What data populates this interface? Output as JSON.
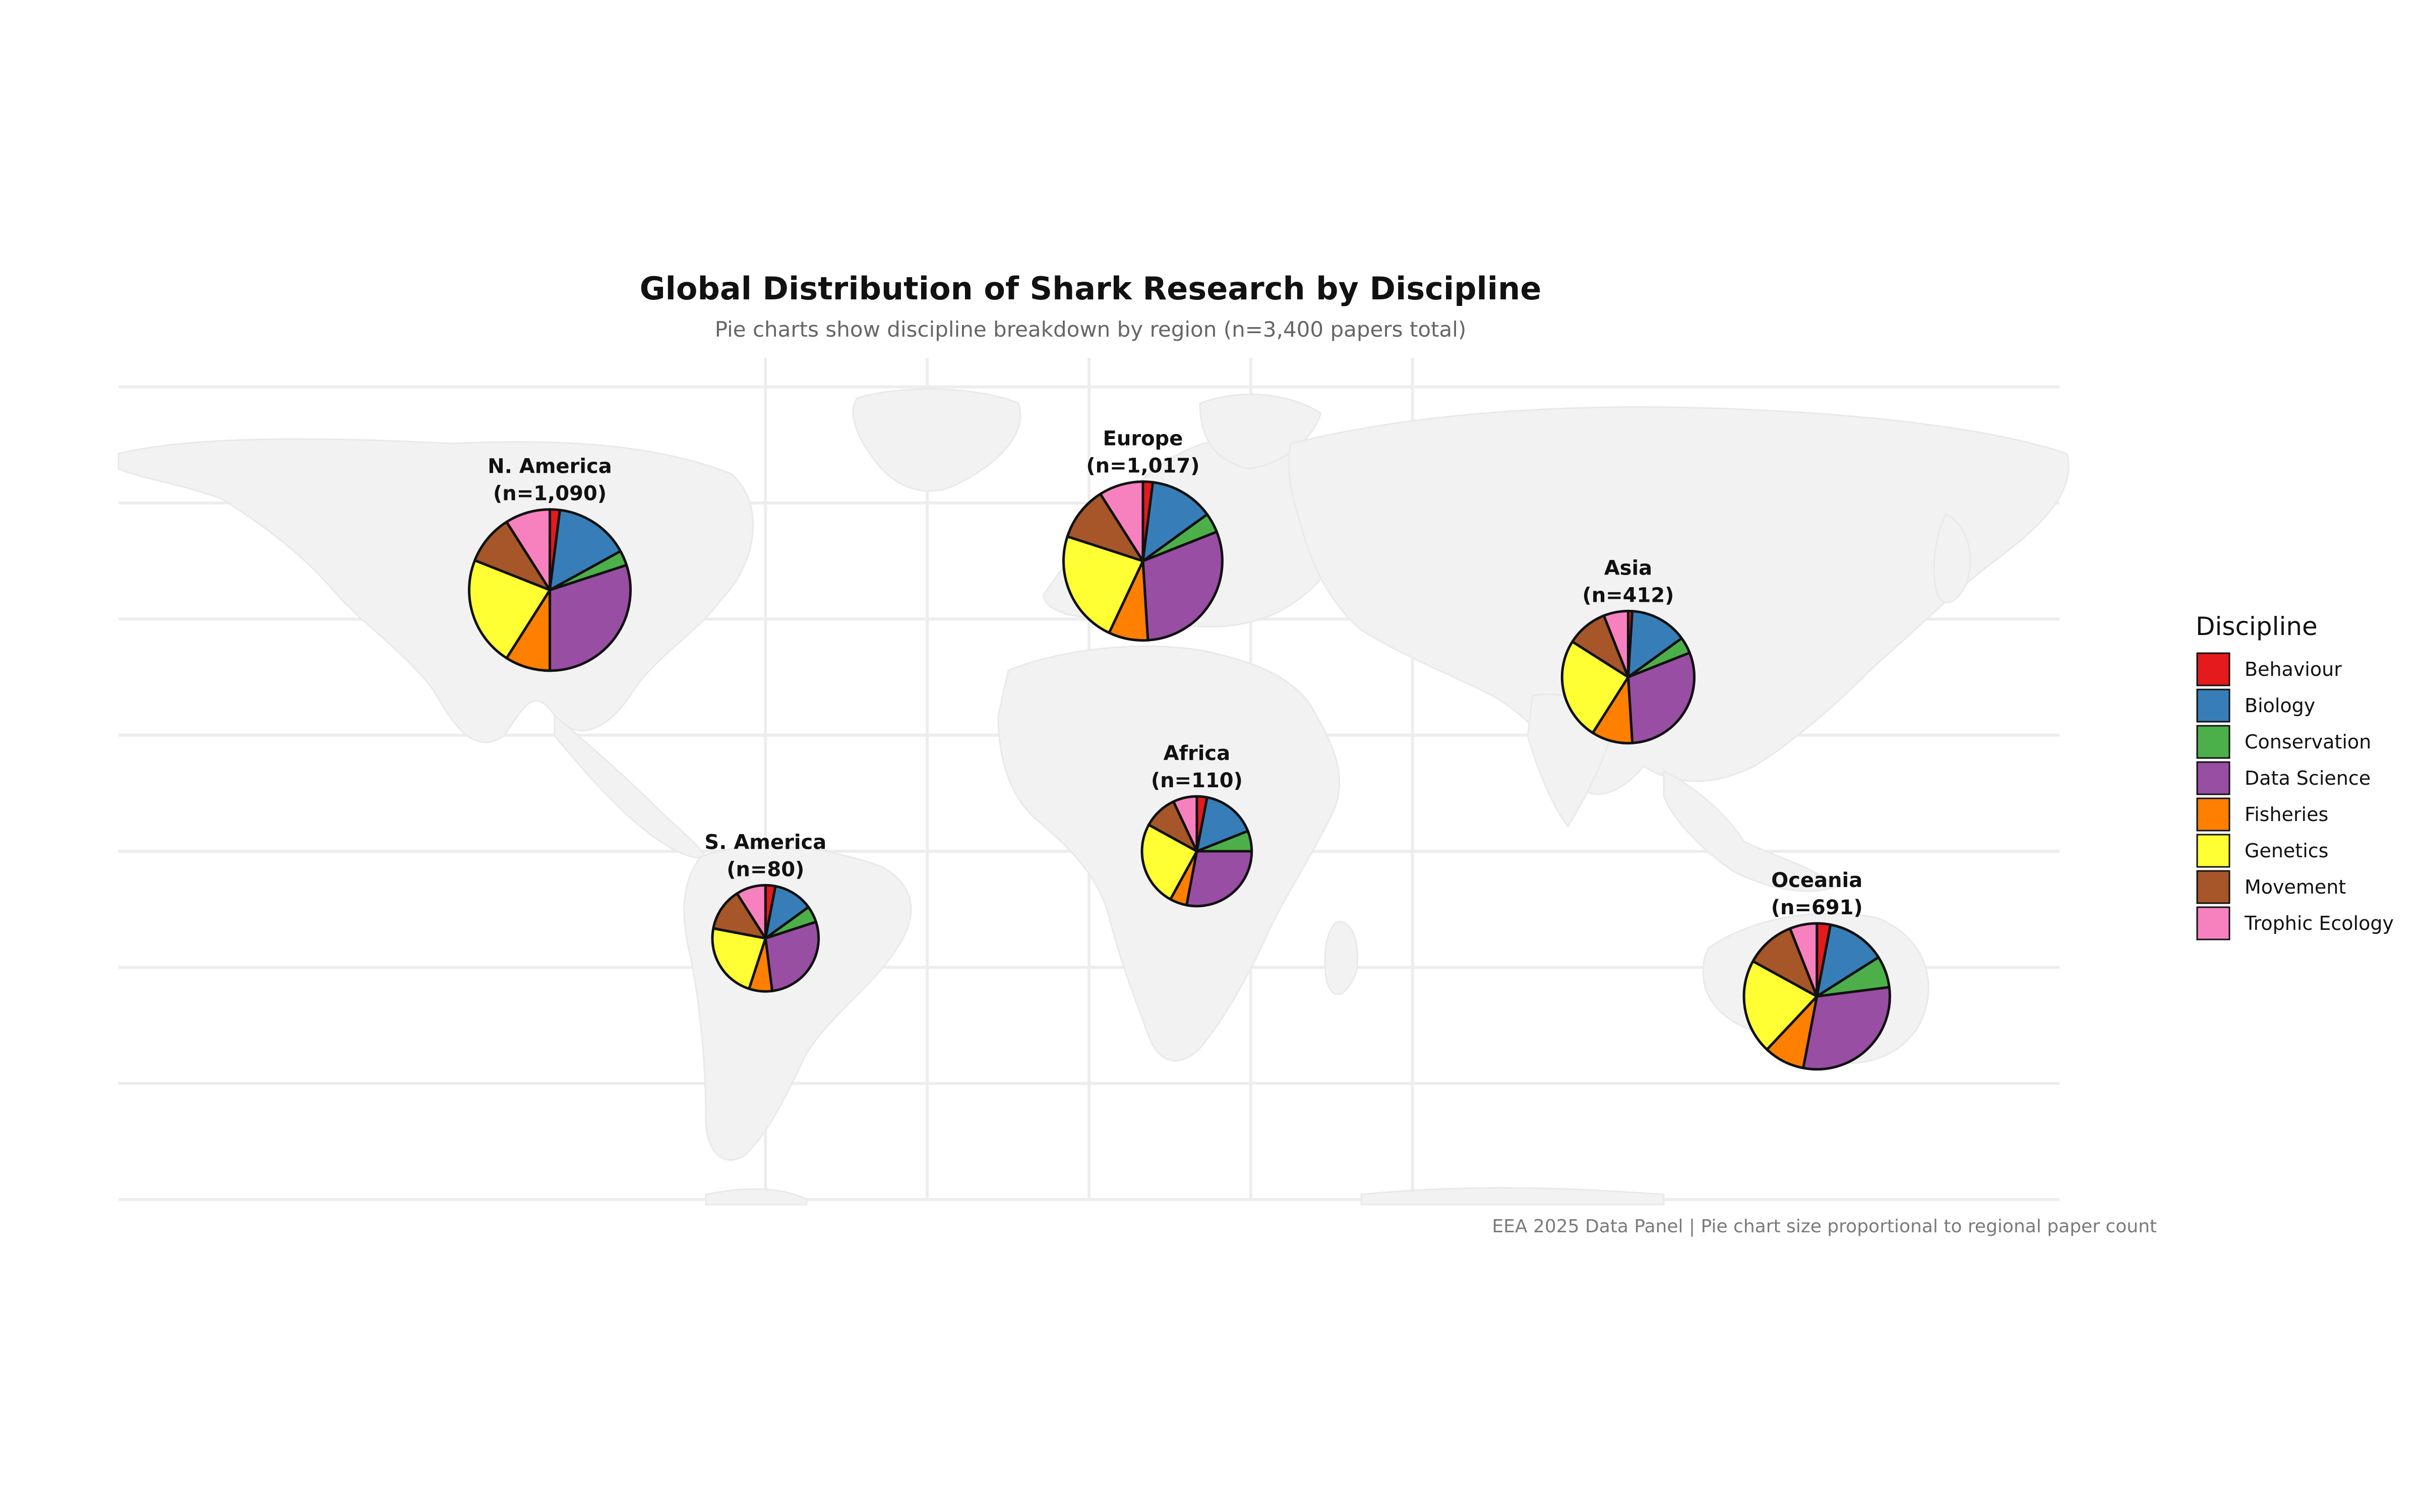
{
  "chart_data": {
    "type": "pie",
    "title": "Global Distribution of Shark Research by Discipline",
    "subtitle": "Pie charts show discipline breakdown by region (n=3,400 papers total)",
    "caption": "EEA 2025 Data Panel | Pie chart size proportional to regional paper count",
    "legend": {
      "title": "Discipline",
      "placement": "right"
    },
    "categories": [
      "Behaviour",
      "Biology",
      "Conservation",
      "Data Science",
      "Fisheries",
      "Genetics",
      "Movement",
      "Trophic Ecology"
    ],
    "colors": {
      "Behaviour": "#e41a1c",
      "Biology": "#377eb8",
      "Conservation": "#4daf4a",
      "Data Science": "#984ea3",
      "Fisheries": "#ff7f00",
      "Genetics": "#ffff33",
      "Movement": "#a65628",
      "Trophic Ecology": "#f781bf"
    },
    "regions": [
      {
        "name": "N. America",
        "n_label": "(n=1,090)",
        "n": 1090,
        "lon": -100,
        "lat": 45,
        "shares": [
          0.02,
          0.15,
          0.03,
          0.3,
          0.09,
          0.22,
          0.1,
          0.09
        ]
      },
      {
        "name": "Europe",
        "n_label": "(n=1,017)",
        "n": 1017,
        "lon": 10,
        "lat": 50,
        "shares": [
          0.02,
          0.13,
          0.04,
          0.3,
          0.08,
          0.23,
          0.11,
          0.09
        ]
      },
      {
        "name": "Asia",
        "n_label": "(n=412)",
        "n": 412,
        "lon": 100,
        "lat": 30,
        "shares": [
          0.01,
          0.14,
          0.04,
          0.3,
          0.1,
          0.25,
          0.1,
          0.06
        ]
      },
      {
        "name": "Africa",
        "n_label": "(n=110)",
        "n": 110,
        "lon": 20,
        "lat": 0,
        "shares": [
          0.03,
          0.16,
          0.06,
          0.28,
          0.05,
          0.25,
          0.1,
          0.07
        ]
      },
      {
        "name": "S. America",
        "n_label": "(n=80)",
        "n": 80,
        "lon": -60,
        "lat": -15,
        "shares": [
          0.03,
          0.12,
          0.05,
          0.28,
          0.07,
          0.23,
          0.13,
          0.09
        ]
      },
      {
        "name": "Oceania",
        "n_label": "(n=691)",
        "n": 691,
        "lon": 135,
        "lat": -25,
        "shares": [
          0.03,
          0.13,
          0.07,
          0.3,
          0.09,
          0.21,
          0.11,
          0.06
        ]
      }
    ],
    "grid": true
  }
}
